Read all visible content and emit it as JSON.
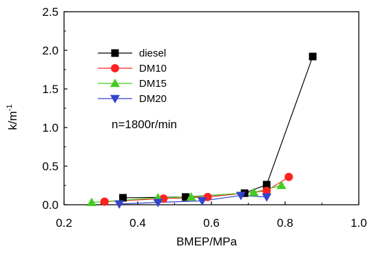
{
  "chart_data": {
    "type": "line",
    "xlabel": "BMEP/MPa",
    "ylabel": "k/m",
    "ylabel_superscript": "-1",
    "xlim": [
      0.2,
      1.0
    ],
    "ylim": [
      0.0,
      2.5
    ],
    "x_ticks": [
      "0.2",
      "0.4",
      "0.6",
      "0.8",
      "1.0"
    ],
    "y_ticks": [
      "0.0",
      "0.5",
      "1.0",
      "1.5",
      "2.0",
      "2.5"
    ],
    "annotation": "n=1800r/min",
    "legend_position": "top-left",
    "grid": false,
    "series": [
      {
        "name": "diesel",
        "color": "#000000",
        "marker": "square",
        "x": [
          0.36,
          0.53,
          0.69,
          0.75,
          0.875
        ],
        "y": [
          0.09,
          0.1,
          0.15,
          0.26,
          1.92
        ]
      },
      {
        "name": "DM10",
        "color": "#ff2020",
        "marker": "circle",
        "x": [
          0.31,
          0.47,
          0.59,
          0.75,
          0.81
        ],
        "y": [
          0.04,
          0.08,
          0.1,
          0.18,
          0.36
        ]
      },
      {
        "name": "DM15",
        "color": "#44cc22",
        "marker": "triangle-up",
        "x": [
          0.275,
          0.455,
          0.545,
          0.715,
          0.79
        ],
        "y": [
          0.03,
          0.09,
          0.1,
          0.16,
          0.25
        ]
      },
      {
        "name": "DM20",
        "color": "#3344cc",
        "marker": "triangle-down",
        "x": [
          0.35,
          0.455,
          0.575,
          0.68,
          0.75
        ],
        "y": [
          0.01,
          0.03,
          0.05,
          0.12,
          0.1
        ]
      }
    ]
  }
}
